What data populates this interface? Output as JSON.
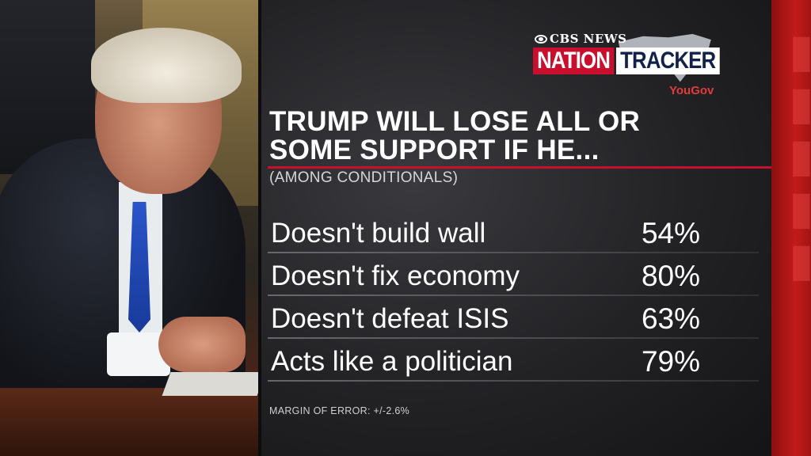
{
  "brand": {
    "network": "CBS NEWS",
    "word1": "NATION",
    "word2": "TRACKER",
    "partner": "YouGov",
    "colors": {
      "red": "#c8102e",
      "navy": "#12214a",
      "sidebar_red": "#c21b1b"
    }
  },
  "chart_data": {
    "type": "table",
    "title_lines": [
      "TRUMP WILL LOSE ALL OR",
      "SOME SUPPORT IF HE..."
    ],
    "subtitle": "(AMONG CONDITIONALS)",
    "rows": [
      {
        "label": "Doesn't build wall",
        "value": 54,
        "display": "54%"
      },
      {
        "label": "Doesn't fix economy",
        "value": 80,
        "display": "80%"
      },
      {
        "label": "Doesn't defeat ISIS",
        "value": 63,
        "display": "63%"
      },
      {
        "label": "Acts like a politician",
        "value": 79,
        "display": "79%"
      }
    ],
    "note": "MARGIN OF ERROR: +/-2.6%"
  }
}
